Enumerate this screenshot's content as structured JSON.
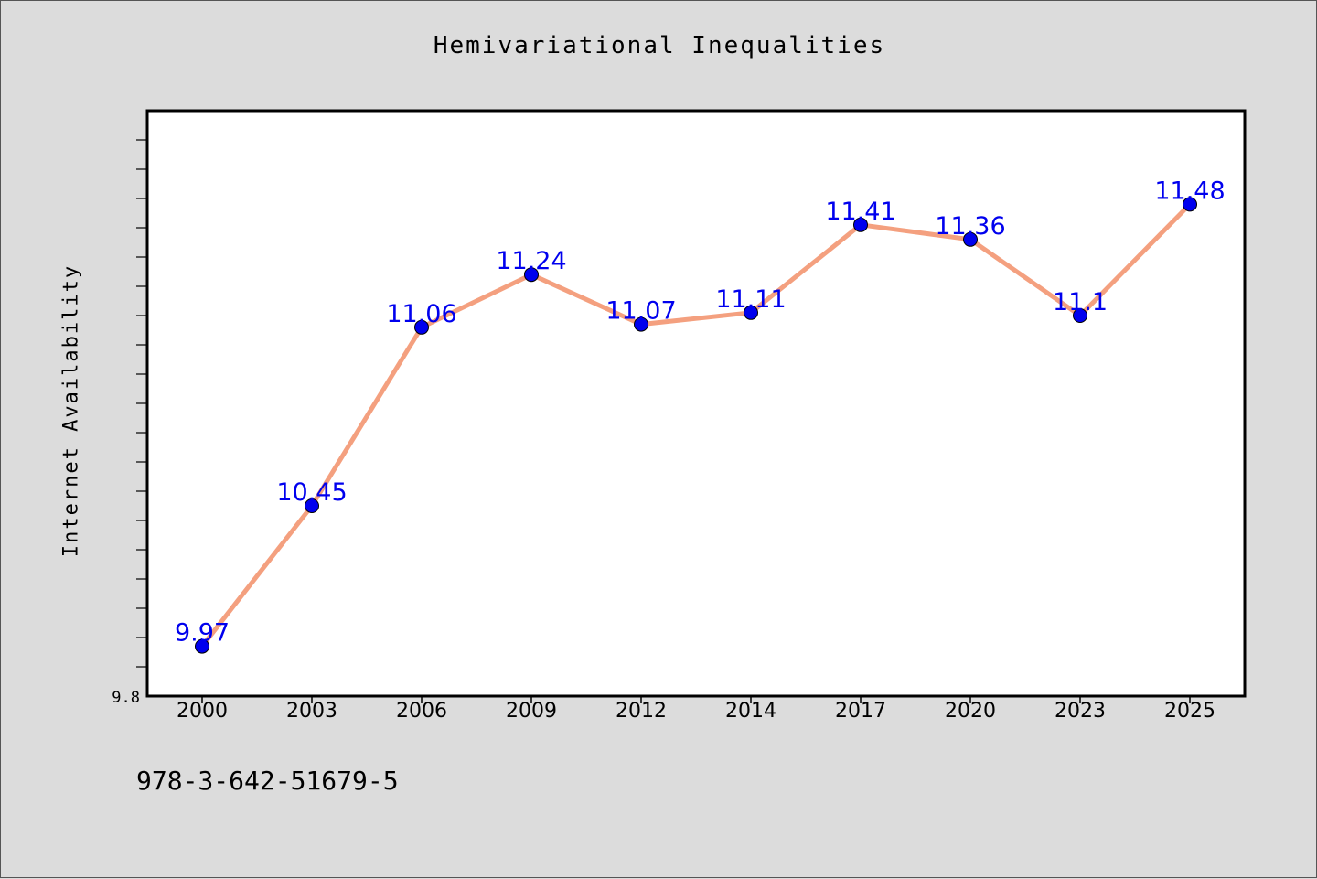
{
  "chart_data": {
    "type": "line",
    "title": "Hemivariational Inequalities",
    "xlabel": "",
    "ylabel": "Internet Availability",
    "categories": [
      "2000",
      "2003",
      "2006",
      "2009",
      "2012",
      "2014",
      "2017",
      "2020",
      "2023",
      "2025"
    ],
    "series": [
      {
        "values": [
          9.97,
          10.45,
          11.06,
          11.24,
          11.07,
          11.11,
          11.41,
          11.36,
          11.1,
          11.48
        ],
        "labels": [
          "9.97",
          "10.45",
          "11.06",
          "11.24",
          "11.07",
          "11.11",
          "11.41",
          "11.36",
          "11.1",
          "11.48"
        ],
        "line_color": "#f4a07f",
        "marker_color": "#0000ee"
      }
    ],
    "ylim": [
      9.8,
      11.8
    ],
    "y_tick_labels": [
      "9.8"
    ],
    "grid": false,
    "legend": "none"
  },
  "footer_text": "978-3-642-51679-5"
}
